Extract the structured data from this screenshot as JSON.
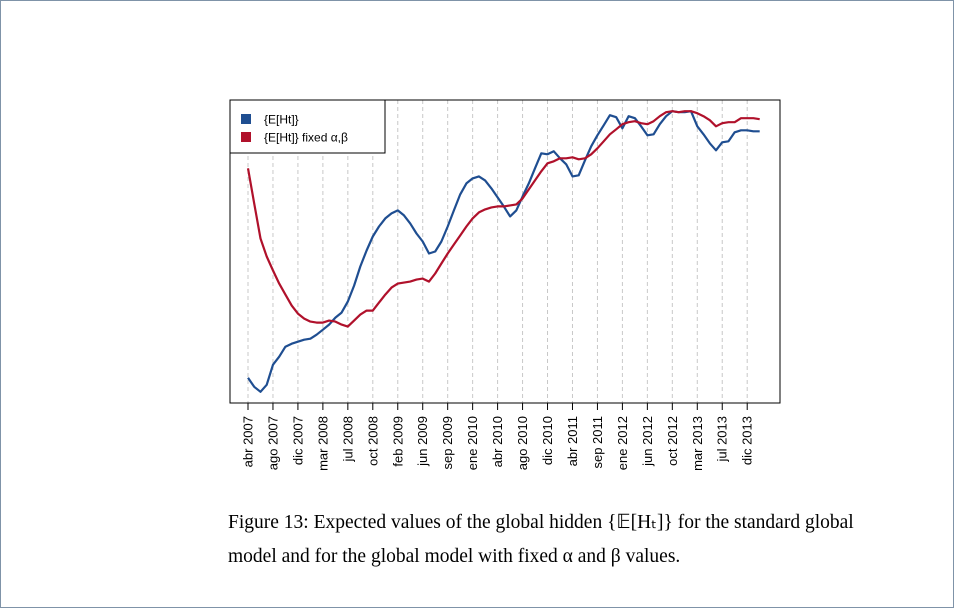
{
  "chart_data": {
    "type": "line",
    "legend": "top-left",
    "grid": true,
    "categories": [
      "abr 2007",
      null,
      null,
      null,
      "ago 2007",
      null,
      null,
      null,
      "dic 2007",
      null,
      null,
      null,
      "mar 2008",
      null,
      null,
      null,
      "jul 2008",
      null,
      null,
      null,
      "oct 2008",
      null,
      null,
      null,
      "feb 2009",
      null,
      null,
      null,
      "jun 2009",
      null,
      null,
      null,
      "sep 2009",
      null,
      null,
      null,
      "ene 2010",
      null,
      null,
      null,
      "abr 2010",
      null,
      null,
      null,
      "ago 2010",
      null,
      null,
      null,
      "dic 2010",
      null,
      null,
      null,
      "abr 2011",
      null,
      null,
      null,
      "sep 2011",
      null,
      null,
      null,
      "ene 2012",
      null,
      null,
      null,
      "jun 2012",
      null,
      null,
      null,
      "oct 2012",
      null,
      null,
      null,
      "mar 2013",
      null,
      null,
      null,
      "jul 2013",
      null,
      null,
      null,
      "dic 2013",
      null,
      null
    ],
    "series": [
      {
        "name": "{E[Ht]}",
        "color": "#1f4e91",
        "values": [
          24,
          15,
          10,
          17,
          37,
          45,
          55,
          58,
          60,
          62,
          63,
          67,
          72,
          77,
          84,
          89,
          100,
          116,
          135,
          151,
          165,
          175,
          183,
          188,
          191,
          186,
          178,
          168,
          160,
          148,
          150,
          160,
          175,
          191,
          207,
          218,
          223,
          225,
          221,
          213,
          204,
          195,
          185,
          191,
          205,
          218,
          233,
          248,
          247,
          250,
          243,
          237,
          225,
          226,
          241,
          255,
          266,
          276,
          286,
          284,
          273,
          285,
          283,
          275,
          266,
          267,
          277,
          285,
          290,
          289,
          289,
          290,
          275,
          267,
          258,
          251,
          259,
          260,
          269,
          271,
          271,
          270,
          270
        ]
      },
      {
        "name": "{E[Ht]} fixed α,β",
        "color": "#b0112b",
        "values": [
          233,
          198,
          163,
          145,
          131,
          118,
          107,
          96,
          88,
          83,
          80,
          79,
          79,
          81,
          80,
          77,
          75,
          81,
          87,
          91,
          91,
          99,
          107,
          114,
          118,
          119,
          120,
          122,
          123,
          120,
          128,
          138,
          148,
          157,
          166,
          175,
          183,
          189,
          192,
          194,
          195,
          195,
          196,
          197,
          203,
          212,
          221,
          230,
          238,
          240,
          243,
          243,
          244,
          242,
          243,
          247,
          253,
          260,
          267,
          272,
          277,
          279,
          280,
          278,
          277,
          280,
          285,
          289,
          290,
          289,
          290,
          290,
          288,
          285,
          281,
          275,
          278,
          279,
          279,
          283,
          283,
          283,
          282
        ]
      }
    ]
  },
  "caption": {
    "lines": [
      "Figure 13:  Expected values of the global hidden {𝔼[Hₜ]} for the standard global",
      "model and for the global model with fixed α and β values."
    ]
  }
}
